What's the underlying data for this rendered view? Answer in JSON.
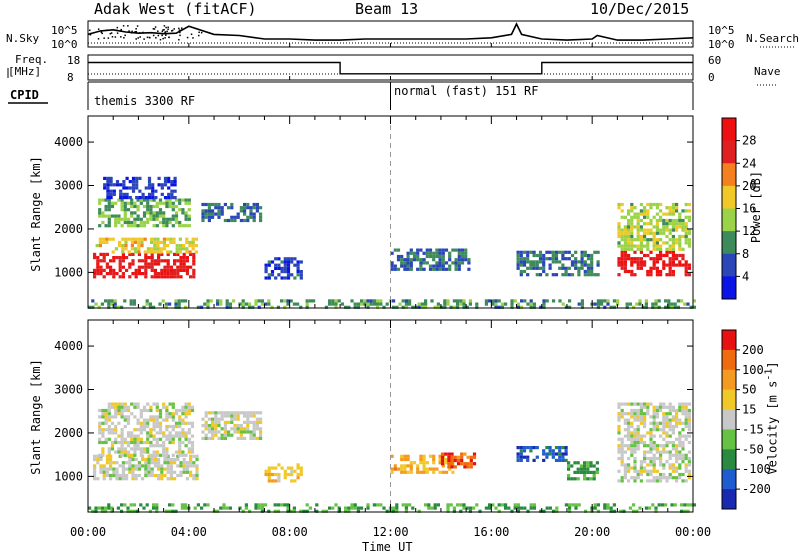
{
  "header": {
    "title": "Adak West (fitACF)",
    "beam": "Beam 13",
    "date": "10/Dec/2015"
  },
  "noise_panel": {
    "left_label": "N.Sky",
    "left_ticks": [
      "10^5",
      "10^0"
    ],
    "right_ticks": [
      "10^5",
      "10^0"
    ],
    "right_label": "N.Search"
  },
  "freq_panel": {
    "left_label_top": "Freq.",
    "left_label_unit": "[MHz]",
    "left_ticks": [
      "18",
      "8"
    ],
    "right_ticks": [
      "60",
      "0"
    ],
    "right_label": "Nave"
  },
  "cpid": {
    "label": "CPID",
    "segments": [
      {
        "text": "themis 3300 RF",
        "start_hour": 0
      },
      {
        "text": "normal (fast) 151 RF",
        "start_hour": 12
      }
    ]
  },
  "xaxis": {
    "title": "Time UT",
    "ticks": [
      "00:00",
      "04:00",
      "08:00",
      "12:00",
      "16:00",
      "20:00",
      "00:00"
    ]
  },
  "chart_data": [
    {
      "type": "line",
      "name": "noise",
      "x_range_hours": [
        0,
        24
      ],
      "series": [
        {
          "x": [
            0,
            0.5,
            1,
            1.5,
            2,
            2.5,
            3,
            3.5,
            4,
            5,
            6,
            7,
            8,
            9,
            10,
            11,
            12,
            13,
            14,
            15,
            16,
            16.8,
            17,
            17.2,
            18,
            19,
            20,
            20.2,
            21,
            22,
            23,
            24
          ],
          "y": [
            0.55,
            0.7,
            0.75,
            0.65,
            0.6,
            0.62,
            0.58,
            0.6,
            0.9,
            0.55,
            0.5,
            0.35,
            0.35,
            0.3,
            0.3,
            0.35,
            0.35,
            0.35,
            0.35,
            0.35,
            0.4,
            0.55,
            1,
            0.55,
            0.35,
            0.3,
            0.35,
            0.5,
            0.3,
            0.3,
            0.35,
            0.4
          ]
        }
      ]
    },
    {
      "type": "line",
      "name": "frequency",
      "x_range_hours": [
        0,
        24
      ],
      "ylim": [
        8,
        18
      ],
      "series": [
        {
          "x": [
            0,
            10,
            10,
            18,
            18,
            24
          ],
          "y": [
            15,
            15,
            10.5,
            10.5,
            15,
            15
          ]
        }
      ]
    },
    {
      "type": "heatmap",
      "name": "power",
      "ylabel": "Slant Range [km]",
      "ylim": [
        180,
        4600
      ],
      "yticks": [
        1000,
        2000,
        3000,
        4000
      ],
      "colorbar": {
        "label": "Power [dB]",
        "ticks": [
          "4",
          "8",
          "12",
          "16",
          "20",
          "24",
          "28"
        ],
        "colors": [
          "#0a14e6",
          "#2a46b8",
          "#3d8a5a",
          "#9bd348",
          "#f0c828",
          "#f58020",
          "#e02020",
          "#ee1010"
        ]
      },
      "regions": [
        {
          "t0": 0.2,
          "t1": 4.2,
          "r0": 900,
          "r1": 1450,
          "level": 0.92
        },
        {
          "t0": 0.3,
          "t1": 4.3,
          "r0": 1450,
          "r1": 1800,
          "level": 0.55
        },
        {
          "t0": 0.4,
          "t1": 4.0,
          "r0": 2100,
          "r1": 2700,
          "level": 0.35
        },
        {
          "t0": 0.6,
          "t1": 3.5,
          "r0": 2700,
          "r1": 3200,
          "level": 0.1
        },
        {
          "t0": 4.5,
          "t1": 6.8,
          "r0": 2200,
          "r1": 2600,
          "level": 0.2
        },
        {
          "t0": 7.0,
          "t1": 8.4,
          "r0": 900,
          "r1": 1350,
          "level": 0.12
        },
        {
          "t0": 12.0,
          "t1": 15.3,
          "r0": 1100,
          "r1": 1550,
          "level": 0.2
        },
        {
          "t0": 17.0,
          "t1": 20.2,
          "r0": 950,
          "r1": 1500,
          "level": 0.22
        },
        {
          "t0": 21.0,
          "t1": 23.9,
          "r0": 950,
          "r1": 1500,
          "level": 0.95
        },
        {
          "t0": 21.0,
          "t1": 23.9,
          "r0": 1500,
          "r1": 2600,
          "level": 0.45
        },
        {
          "t0": 0,
          "t1": 24,
          "r0": 200,
          "r1": 380,
          "level": 0.3
        }
      ]
    },
    {
      "type": "heatmap",
      "name": "velocity",
      "ylabel": "Slant Range [km]",
      "ylim": [
        180,
        4600
      ],
      "yticks": [
        1000,
        2000,
        3000,
        4000
      ],
      "colorbar": {
        "label": "Velocity [m s^-1]",
        "ticks": [
          "200",
          "100",
          "50",
          "15",
          "-15",
          "-50",
          "-100",
          "-200"
        ],
        "colors": [
          "#1a2ab0",
          "#1f5cd0",
          "#2a8a40",
          "#66c244",
          "#c8c8c8",
          "#f0c828",
          "#f59a20",
          "#f06a10",
          "#e81010"
        ]
      },
      "regions": [
        {
          "t0": 0.2,
          "t1": 4.3,
          "r0": 950,
          "r1": 1500,
          "level": 0.5
        },
        {
          "t0": 0.4,
          "t1": 4.2,
          "r0": 1500,
          "r1": 2700,
          "level": 0.5
        },
        {
          "t0": 4.5,
          "t1": 6.8,
          "r0": 1900,
          "r1": 2500,
          "level": 0.5
        },
        {
          "t0": 7.0,
          "t1": 8.4,
          "r0": 900,
          "r1": 1300,
          "level": 0.62
        },
        {
          "t0": 12.0,
          "t1": 14.5,
          "r0": 1100,
          "r1": 1500,
          "level": 0.72
        },
        {
          "t0": 14.0,
          "t1": 15.3,
          "r0": 1250,
          "r1": 1550,
          "level": 0.9
        },
        {
          "t0": 17.0,
          "t1": 19.0,
          "r0": 1400,
          "r1": 1700,
          "level": 0.1
        },
        {
          "t0": 19.0,
          "t1": 20.2,
          "r0": 950,
          "r1": 1350,
          "level": 0.3
        },
        {
          "t0": 21.0,
          "t1": 23.9,
          "r0": 900,
          "r1": 2700,
          "level": 0.5
        },
        {
          "t0": 0,
          "t1": 24,
          "r0": 200,
          "r1": 380,
          "level": 0.32
        }
      ]
    }
  ]
}
